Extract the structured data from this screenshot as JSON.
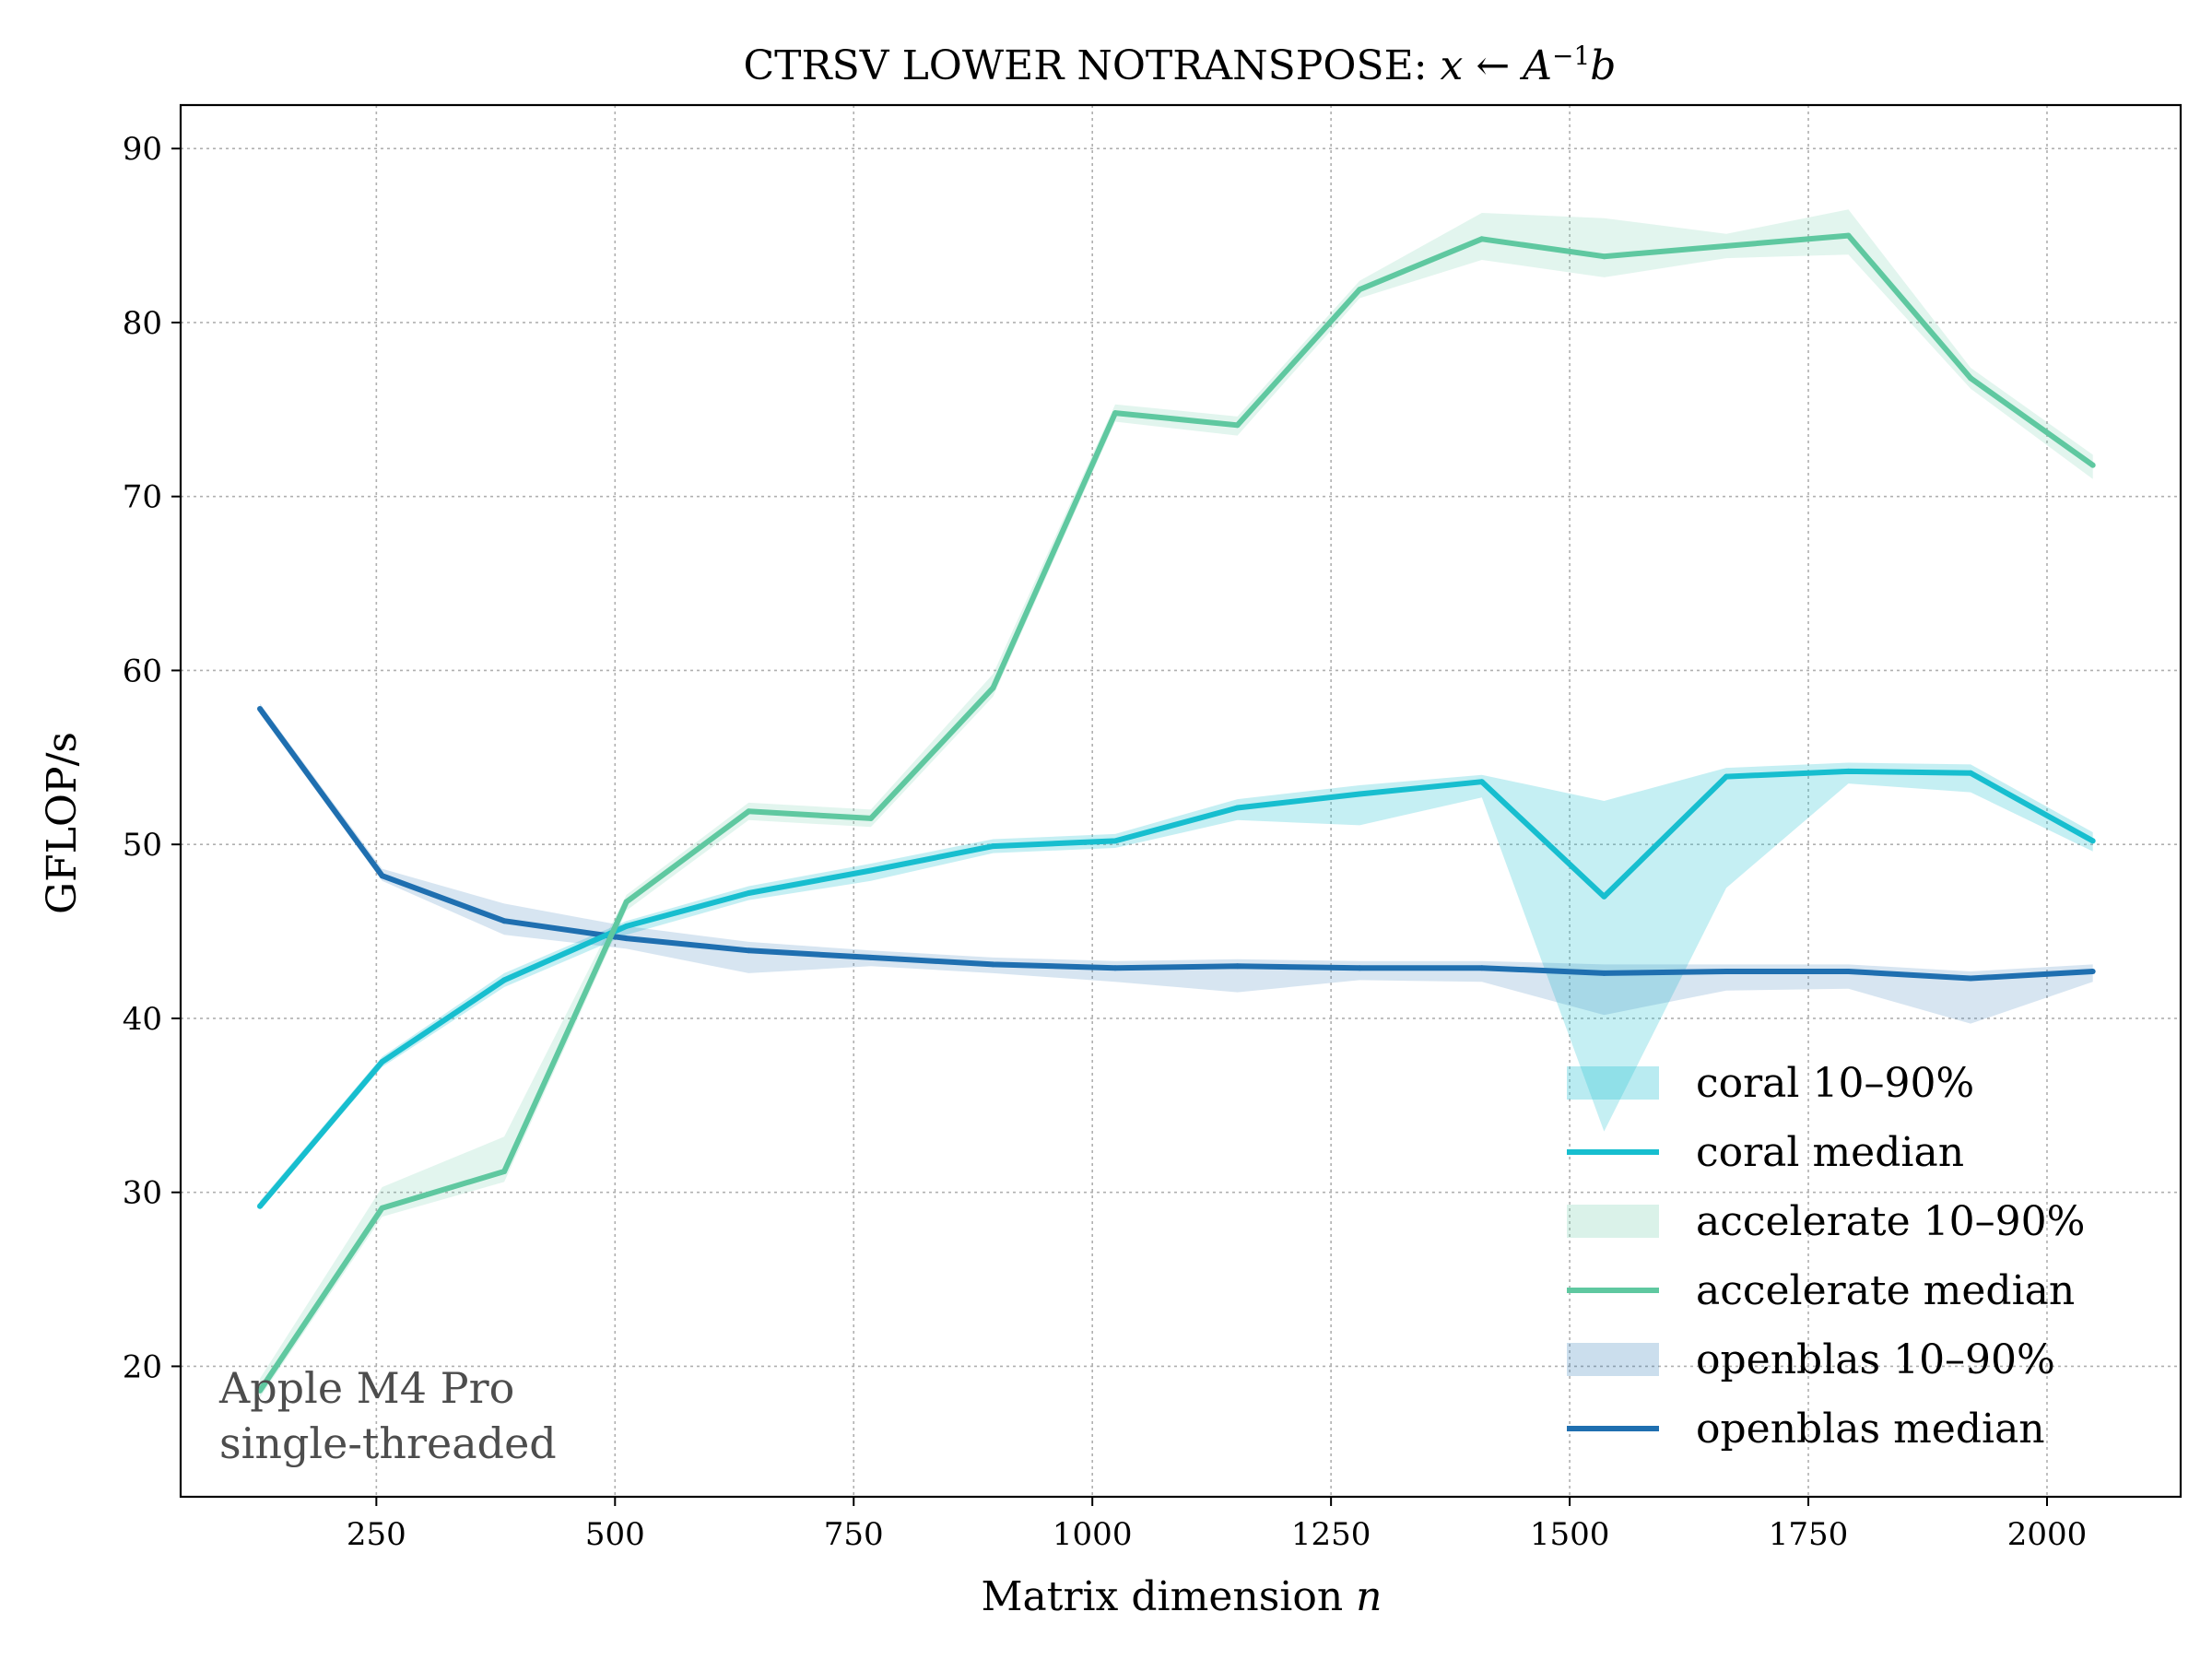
{
  "chart_data": {
    "type": "line",
    "title_text": "CTRSV LOWER NOTRANSPOSE: ",
    "title_math": {
      "x": "x",
      "arrow": "←",
      "A": "A",
      "sup": "−1",
      "b": "b"
    },
    "xlabel_text": "Matrix dimension ",
    "xlabel_math": "n",
    "ylabel": "GFLOP/s",
    "xlim": [
      45,
      2140
    ],
    "ylim": [
      12.5,
      92.5
    ],
    "xticks": [
      250,
      500,
      750,
      1000,
      1250,
      1500,
      1750,
      2000
    ],
    "yticks": [
      20,
      30,
      40,
      50,
      60,
      70,
      80,
      90
    ],
    "grid": true,
    "legend_position": "lower-right",
    "annotation": [
      "Apple M4 Pro",
      "single-threaded"
    ],
    "x": [
      128,
      256,
      384,
      512,
      640,
      768,
      896,
      1024,
      1152,
      1280,
      1408,
      1536,
      1664,
      1792,
      1920,
      2048
    ],
    "series": [
      {
        "name": "coral",
        "color": "#17becf",
        "band_alpha": 0.25,
        "median": [
          29.2,
          37.5,
          42.2,
          45.3,
          47.2,
          48.5,
          49.9,
          50.2,
          52.1,
          52.9,
          53.6,
          47.0,
          53.9,
          54.2,
          54.1,
          50.2
        ],
        "p10": [
          29.0,
          37.2,
          41.8,
          44.8,
          46.8,
          47.9,
          49.5,
          49.8,
          51.4,
          51.1,
          52.7,
          33.5,
          47.5,
          53.5,
          53.0,
          49.6
        ],
        "p90": [
          29.5,
          37.8,
          42.6,
          45.6,
          47.6,
          48.9,
          50.3,
          50.6,
          52.6,
          53.4,
          54.0,
          52.5,
          54.4,
          54.7,
          54.6,
          50.7
        ]
      },
      {
        "name": "accelerate",
        "color": "#5fc8a0",
        "band_alpha": 0.18,
        "median": [
          18.6,
          29.1,
          31.2,
          46.7,
          51.9,
          51.5,
          59.0,
          74.8,
          74.1,
          81.9,
          84.8,
          83.8,
          84.4,
          85.0,
          76.8,
          71.8
        ],
        "p10": [
          18.2,
          28.6,
          30.6,
          46.2,
          51.4,
          51.0,
          58.5,
          74.3,
          73.5,
          81.4,
          83.6,
          82.6,
          83.7,
          83.9,
          76.2,
          71.0
        ],
        "p90": [
          19.3,
          30.3,
          33.2,
          47.1,
          52.4,
          52.0,
          59.8,
          75.3,
          74.6,
          82.4,
          86.3,
          86.0,
          85.1,
          86.5,
          77.4,
          72.4
        ]
      },
      {
        "name": "openblas",
        "color": "#1f6fb0",
        "band_alpha": 0.18,
        "median": [
          57.8,
          48.2,
          45.6,
          44.6,
          43.9,
          43.5,
          43.1,
          42.9,
          43.0,
          42.9,
          42.9,
          42.6,
          42.7,
          42.7,
          42.3,
          42.7
        ],
        "p10": [
          57.5,
          47.9,
          44.8,
          44.0,
          42.6,
          43.0,
          42.6,
          42.1,
          41.5,
          42.2,
          42.1,
          40.2,
          41.6,
          41.7,
          39.7,
          42.1
        ],
        "p90": [
          58.1,
          48.6,
          46.6,
          45.3,
          44.4,
          43.9,
          43.5,
          43.3,
          43.4,
          43.3,
          43.3,
          43.1,
          43.1,
          43.1,
          42.7,
          43.1
        ]
      }
    ],
    "legend": [
      {
        "label": "coral 10–90%",
        "kind": "band",
        "series": "coral"
      },
      {
        "label": "coral median",
        "kind": "line",
        "series": "coral"
      },
      {
        "label": "accelerate 10–90%",
        "kind": "band",
        "series": "accelerate"
      },
      {
        "label": "accelerate median",
        "kind": "line",
        "series": "accelerate"
      },
      {
        "label": "openblas 10–90%",
        "kind": "band",
        "series": "openblas"
      },
      {
        "label": "openblas median",
        "kind": "line",
        "series": "openblas"
      }
    ]
  }
}
